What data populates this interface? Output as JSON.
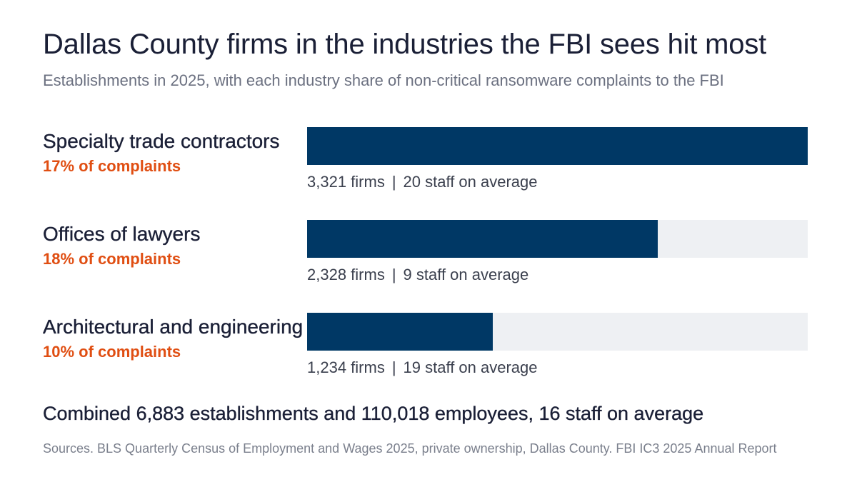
{
  "header": {
    "title": "Dallas County firms in the industries the FBI sees hit most",
    "subtitle": "Establishments in 2025, with each industry share of non-critical ransomware complaints to the FBI"
  },
  "colors": {
    "bar": "#003865",
    "track": "#eef0f3",
    "share": "#e04e12"
  },
  "chart_data": {
    "type": "bar",
    "orientation": "horizontal",
    "title": "Dallas County firms in the industries the FBI sees hit most",
    "subtitle": "Establishments in 2025, with each industry share of non-critical ransomware complaints to the FBI",
    "xlim": [
      0,
      3321
    ],
    "grid": false,
    "categories": [
      "Specialty trade contractors",
      "Offices of lawyers",
      "Architectural and engineering services"
    ],
    "values": [
      3321,
      2328,
      1234
    ],
    "rows": [
      {
        "label": "Specialty trade contractors",
        "share": "17% of complaints",
        "firms": 3321,
        "firms_text": "3,321 firms",
        "staff_text": "20 staff on average"
      },
      {
        "label": "Offices of lawyers",
        "share": "18% of complaints",
        "firms": 2328,
        "firms_text": "2,328 firms",
        "staff_text": "9 staff on average"
      },
      {
        "label": "Architectural and engineering services",
        "share": "10% of complaints",
        "firms": 1234,
        "firms_text": "1,234 firms",
        "staff_text": "19 staff on average"
      }
    ]
  },
  "summary": "Combined 6,883 establishments and 110,018 employees, 16 staff on average",
  "source": "Sources. BLS Quarterly Census of Employment and Wages 2025, private ownership, Dallas County. FBI IC3 2025 Annual Report",
  "separator": "|"
}
